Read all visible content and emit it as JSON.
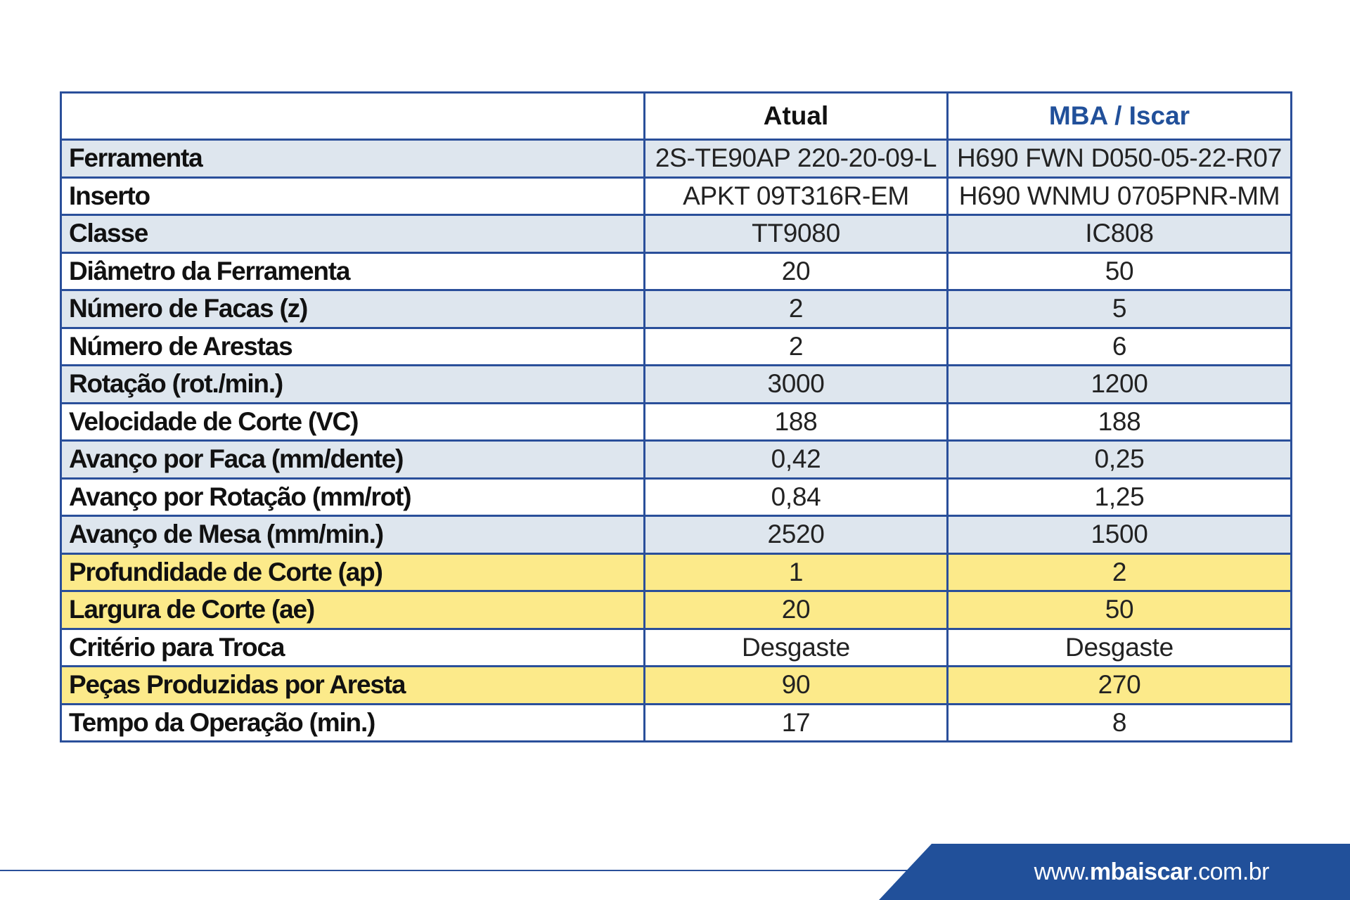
{
  "table": {
    "header": {
      "corner": "",
      "col_atual": "Atual",
      "col_mba": "MBA / Iscar"
    },
    "rows": [
      {
        "label": "Ferramenta",
        "atual": "2S-TE90AP 220-20-09-L",
        "mba": "H690 FWN D050-05-22-R07",
        "shade": "blue"
      },
      {
        "label": "Inserto",
        "atual": "APKT 09T316R-EM",
        "mba": "H690 WNMU 0705PNR-MM",
        "shade": "white"
      },
      {
        "label": "Classe",
        "atual": "TT9080",
        "mba": "IC808",
        "shade": "blue"
      },
      {
        "label": "Diâmetro da Ferramenta",
        "atual": "20",
        "mba": "50",
        "shade": "white"
      },
      {
        "label": "Número de Facas (z)",
        "atual": "2",
        "mba": "5",
        "shade": "blue"
      },
      {
        "label": "Número de Arestas",
        "atual": "2",
        "mba": "6",
        "shade": "white"
      },
      {
        "label": "Rotação (rot./min.)",
        "atual": "3000",
        "mba": "1200",
        "shade": "blue"
      },
      {
        "label": "Velocidade de Corte (VC)",
        "atual": "188",
        "mba": "188",
        "shade": "white"
      },
      {
        "label": "Avanço por Faca (mm/dente)",
        "atual": "0,42",
        "mba": "0,25",
        "shade": "blue"
      },
      {
        "label": "Avanço por Rotação (mm/rot)",
        "atual": "0,84",
        "mba": "1,25",
        "shade": "white"
      },
      {
        "label": "Avanço de Mesa (mm/min.)",
        "atual": "2520",
        "mba": "1500",
        "shade": "blue"
      },
      {
        "label": "Profundidade de Corte (ap)",
        "atual": "1",
        "mba": "2",
        "shade": "yellow"
      },
      {
        "label": "Largura de Corte (ae)",
        "atual": "20",
        "mba": "50",
        "shade": "yellow"
      },
      {
        "label": "Critério para Troca",
        "atual": "Desgaste",
        "mba": "Desgaste",
        "shade": "white"
      },
      {
        "label": "Peças Produzidas por Aresta",
        "atual": "90",
        "mba": "270",
        "shade": "yellow"
      },
      {
        "label": "Tempo da Operação (min.)",
        "atual": "17",
        "mba": "8",
        "shade": "white"
      }
    ]
  },
  "footer": {
    "url_prefix": "www.",
    "url_brand": "mbaiscar",
    "url_suffix": ".com.br"
  },
  "colors": {
    "border": "#2a4f9a",
    "brand_blue": "#21509a",
    "row_blue": "#dee6ee",
    "row_yellow": "#fcea8a",
    "row_white": "#ffffff"
  }
}
